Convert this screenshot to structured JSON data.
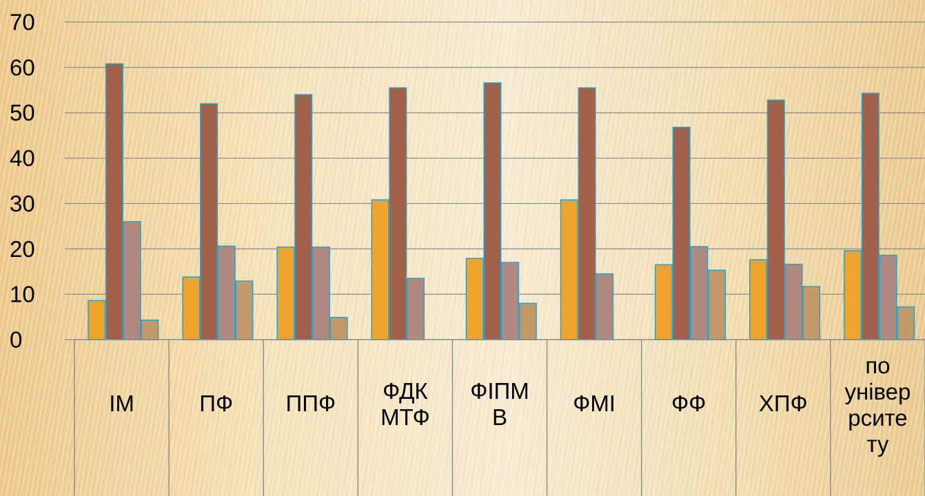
{
  "chart_data": {
    "type": "bar",
    "title": "",
    "xlabel": "",
    "ylabel": "",
    "ylim": [
      0,
      70
    ],
    "yticks": [
      "0",
      "10",
      "20",
      "30",
      "40",
      "50",
      "60",
      "70"
    ],
    "grid": true,
    "categories": [
      [
        "ІМ"
      ],
      [
        "ПФ"
      ],
      [
        "ППФ"
      ],
      [
        "ФДК",
        "МТФ"
      ],
      [
        "ФІПМ",
        "В"
      ],
      [
        "ФМІ"
      ],
      [
        "ФФ"
      ],
      [
        "ХПФ"
      ],
      [
        "по",
        "універ",
        "рсите",
        "ту"
      ]
    ],
    "series": [
      {
        "color": "#F0A42E",
        "values": [
          8.6,
          13.8,
          20.4,
          30.8,
          17.9,
          30.8,
          16.5,
          17.6,
          19.6
        ]
      },
      {
        "color": "#A0604A",
        "values": [
          60.8,
          52.0,
          54.0,
          55.5,
          56.6,
          55.5,
          46.8,
          52.8,
          54.3
        ]
      },
      {
        "color": "#B08A80",
        "values": [
          26.0,
          20.6,
          20.4,
          13.5,
          17.0,
          14.5,
          20.5,
          16.6,
          18.6
        ]
      },
      {
        "color": "#C29A6A",
        "values": [
          4.3,
          12.9,
          4.9,
          0,
          8.0,
          0,
          15.3,
          11.7,
          7.2
        ]
      }
    ]
  }
}
